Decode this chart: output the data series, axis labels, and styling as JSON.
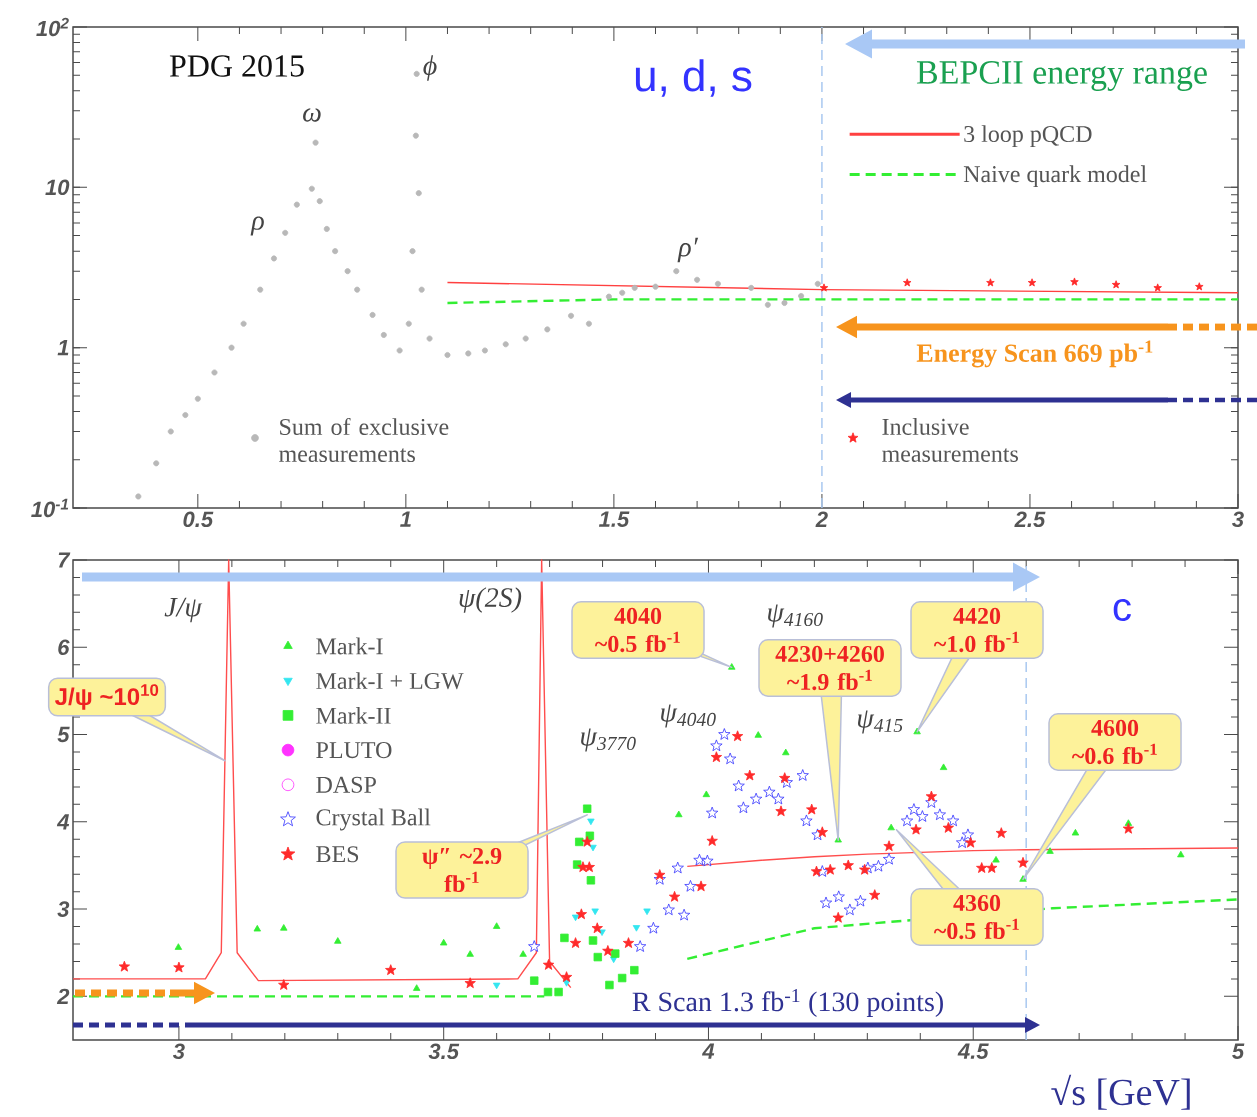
{
  "chart_data": [
    {
      "type": "scatter",
      "log": "y",
      "xlim": [
        0.2,
        3
      ],
      "ylim": [
        0.1,
        100
      ],
      "xticks": [
        0.5,
        1,
        1.5,
        2,
        2.5,
        3
      ],
      "yticks": [
        {
          "value": 0.1,
          "label": "10$^{-1}$"
        },
        1,
        10,
        {
          "value": 100,
          "label": "10$^{2}$"
        }
      ],
      "legend": "bottom",
      "ref_lines": [
        {
          "axis": "x",
          "value": 2,
          "color": "#a9c8f0",
          "line_style": "dashed"
        }
      ],
      "annotations": [
        "PDG 2015",
        "u, d, s",
        "BEPCII energy range",
        "Energy Scan 669 pb$^{-1}$",
        "ρ",
        "ω",
        "ϕ",
        "ρ′"
      ],
      "series": [
        {
          "name": "3 loop pQCD",
          "type": "line",
          "line_style": "solid",
          "marker": "none",
          "color": "#ff4040",
          "x": [
            1.1,
            2.0,
            3.0
          ],
          "values": [
            2.55,
            2.3,
            2.2
          ]
        },
        {
          "name": "Naive quark model",
          "type": "line",
          "line_style": "dashed",
          "marker": "none",
          "color": "#33ee33",
          "x": [
            1.1,
            1.5,
            3.0
          ],
          "values": [
            1.9,
            2.0,
            2.0
          ]
        },
        {
          "name": "Sum of exclusive measurements",
          "marker": "circle",
          "color": "#b8b8b8",
          "x": [
            0.357,
            0.4,
            0.435,
            0.47,
            0.5,
            0.54,
            0.581,
            0.61,
            0.65,
            0.683,
            0.71,
            0.738,
            0.774,
            0.783,
            0.793,
            0.81,
            0.83,
            0.86,
            0.883,
            0.92,
            0.947,
            0.985,
            1.007,
            1.016,
            1.024,
            1.026,
            1.031,
            1.038,
            1.057,
            1.1,
            1.15,
            1.19,
            1.24,
            1.288,
            1.34,
            1.397,
            1.44,
            1.488,
            1.52,
            1.55,
            1.6,
            1.65,
            1.7,
            1.75,
            1.83,
            1.87,
            1.91,
            1.95,
            1.99
          ],
          "values": [
            0.118,
            0.19,
            0.3,
            0.38,
            0.48,
            0.7,
            1.0,
            1.41,
            2.3,
            3.6,
            5.2,
            7.8,
            9.8,
            19,
            8.2,
            5.5,
            4.0,
            3.0,
            2.3,
            1.6,
            1.2,
            0.96,
            1.41,
            4.0,
            21,
            51,
            9.2,
            2.3,
            1.14,
            0.9,
            0.92,
            0.96,
            1.05,
            1.14,
            1.3,
            1.58,
            1.41,
            2.08,
            2.2,
            2.36,
            2.4,
            3.0,
            2.65,
            2.5,
            2.36,
            1.85,
            1.9,
            2.1,
            2.5
          ]
        },
        {
          "name": "Inclusive measurements",
          "marker": "star",
          "color": "#ff2a2a",
          "x": [
            2.005,
            2.205,
            2.405,
            2.505,
            2.607,
            2.707,
            2.807,
            2.907
          ],
          "values": [
            2.36,
            2.54,
            2.54,
            2.54,
            2.57,
            2.47,
            2.36,
            2.4
          ]
        }
      ]
    },
    {
      "type": "scatter",
      "xlim": [
        2.8,
        5
      ],
      "ylim": [
        1.5,
        7
      ],
      "xticks": [
        3,
        3.5,
        4,
        4.5,
        5
      ],
      "yticks": [
        2,
        3,
        4,
        5,
        6,
        7
      ],
      "xlabel": "√s [GeV]",
      "legend": "top left",
      "ref_lines": [
        {
          "axis": "x",
          "value": 4.6,
          "color": "#a9c8f0",
          "line_style": "dashed"
        }
      ],
      "annotations": [
        "J/ψ",
        "ψ(2S)",
        "ψ$_{3770}$",
        "ψ$_{4040}$",
        "ψ$_{4160}$",
        "ψ$_{415}$",
        "c",
        "R Scan 1.3 fb$^{-1}$ (130 points)",
        {
          "text": "J/ψ ~10$^{10}$",
          "x": 3.087,
          "y": 4.7
        },
        {
          "text": "ψ″ ~2.9 fb$^{-1}$",
          "x": 3.771,
          "y": 4.08
        },
        {
          "text": "4040 ~0.5 fb$^{-1}$",
          "x": 4.044,
          "y": 5.77
        },
        {
          "text": "4230+4260 ~1.9 fb$^{-1}$",
          "x": 4.245,
          "y": 3.79
        },
        "4420 ~1.0 fb$^{-1}$",
        "4360 ~0.5 fb$^{-1}$",
        "4600 ~0.6 fb$^{-1}$"
      ],
      "series": [
        {
          "type": "line",
          "line_style": "solid",
          "marker": "none",
          "color": "#ff4d4d",
          "x": [
            2.8,
            3.05,
            3.08,
            3.094,
            3.11,
            3.15,
            3.64,
            3.675,
            3.685,
            3.7,
            3.74
          ],
          "values": [
            2.2,
            2.2,
            2.5,
            7,
            2.5,
            2.18,
            2.2,
            2.5,
            7,
            2.4,
            2.1
          ]
        },
        {
          "type": "line",
          "line_style": "solid",
          "marker": "none",
          "color": "#ff4d4d",
          "x": [
            3.96,
            4.1,
            4.2,
            4.3,
            4.5,
            4.6,
            5.0
          ],
          "values": [
            3.49,
            3.56,
            3.6,
            3.63,
            3.67,
            3.68,
            3.7
          ]
        },
        {
          "type": "line",
          "line_style": "dashed",
          "marker": "none",
          "color": "#33ee33",
          "x": [
            2.8,
            3.69
          ],
          "values": [
            2.0,
            2.0
          ]
        },
        {
          "type": "line",
          "line_style": "dashed",
          "marker": "none",
          "color": "#33ee33",
          "x": [
            3.96,
            4.2,
            4.65,
            5.0
          ],
          "values": [
            2.43,
            2.78,
            3.01,
            3.11
          ]
        },
        {
          "name": "Mark-I",
          "marker": "triangle",
          "color": "#33ee33",
          "x": [
            2.999,
            3.148,
            3.198,
            3.3,
            3.4,
            3.449,
            3.5,
            3.55,
            3.6,
            3.65,
            3.944,
            3.996,
            4.044,
            4.094,
            4.146,
            4.245,
            4.345,
            4.394,
            4.444,
            4.543,
            4.594,
            4.645,
            4.693,
            4.793,
            4.892
          ],
          "values": [
            2.56,
            2.77,
            2.78,
            2.63,
            null,
            2.09,
            2.61,
            2.48,
            2.8,
            2.48,
            4.08,
            4.31,
            5.77,
            4.99,
            4.79,
            3.79,
            3.93,
            5.03,
            4.62,
            3.56,
            3.34,
            3.66,
            3.87,
            3.98,
            3.62
          ]
        },
        {
          "name": "Mark-I + LGW",
          "marker": "triangle-down",
          "color": "#33e6f0",
          "x": [
            3.6,
            3.732,
            3.749,
            3.778,
            3.782,
            3.786,
            3.799,
            3.821,
            3.864,
            3.884
          ],
          "values": [
            2.13,
            2.16,
            2.91,
            4.01,
            3.71,
            2.98,
            2.74,
            2.43,
            2.79,
            2.98
          ]
        },
        {
          "name": "Mark-II",
          "marker": "square",
          "color": "#33ee33",
          "x": [
            3.671,
            3.697,
            3.717,
            3.728,
            3.752,
            3.756,
            3.771,
            3.776,
            3.778,
            3.782,
            3.791,
            3.813,
            3.824,
            3.837,
            3.86
          ],
          "values": [
            2.18,
            2.05,
            2.05,
            2.67,
            3.51,
            3.77,
            4.15,
            3.84,
            3.33,
            2.64,
            2.45,
            2.13,
            2.49,
            2.21,
            2.3
          ]
        },
        {
          "name": "PLUTO",
          "marker": "circle",
          "color": "#ff33ff"
        },
        {
          "name": "DASP",
          "marker": "circle-open",
          "color": "#ff33ff"
        },
        {
          "name": "Crystal Ball",
          "marker": "star-open",
          "color": "#3333ff",
          "x": [
            3.671,
            3.871,
            3.896,
            3.908,
            3.925,
            3.942,
            3.954,
            3.966,
            3.983,
            3.998,
            4.007,
            4.015,
            4.03,
            4.041,
            4.057,
            4.066,
            4.09,
            4.115,
            4.132,
            4.148,
            4.178,
            4.185,
            4.206,
            4.215,
            4.222,
            4.246,
            4.267,
            4.287,
            4.301,
            4.321,
            4.341,
            4.364,
            4.375,
            4.388,
            4.404,
            4.421,
            4.437,
            4.462,
            4.479,
            4.49
          ],
          "values": [
            2.57,
            2.57,
            2.78,
            3.34,
            2.99,
            3.47,
            2.93,
            3.26,
            3.56,
            3.55,
            4.1,
            4.87,
            5.0,
            4.72,
            4.41,
            4.16,
            4.26,
            4.34,
            4.26,
            4.45,
            4.53,
            4.01,
            3.85,
            3.43,
            3.07,
            3.14,
            2.99,
            3.09,
            3.47,
            3.49,
            3.57,
            null,
            4.01,
            4.14,
            4.06,
            4.22,
            4.08,
            4.01,
            3.76,
            3.85
          ]
        },
        {
          "name": "BES",
          "marker": "star",
          "color": "#ff2a2a",
          "x": [
            2.897,
            3.0,
            3.198,
            3.4,
            3.55,
            3.698,
            3.732,
            3.749,
            3.76,
            3.763,
            3.771,
            3.775,
            3.79,
            3.81,
            3.849,
            3.908,
            3.936,
            3.986,
            4.007,
            4.015,
            4.055,
            4.078,
            4.137,
            4.144,
            4.195,
            4.204,
            4.215,
            4.23,
            4.245,
            4.264,
            4.295,
            4.314,
            4.341,
            4.392,
            4.421,
            4.453,
            4.495,
            4.516,
            4.535,
            4.553,
            4.594,
            4.793
          ],
          "values": [
            2.34,
            2.33,
            2.13,
            2.3,
            2.15,
            2.36,
            2.22,
            2.61,
            2.94,
            3.48,
            3.77,
            3.48,
            2.78,
            2.52,
            2.61,
            3.39,
            3.14,
            3.26,
            3.78,
            4.74,
            4.98,
            4.53,
            4.12,
            4.5,
            4.14,
            3.43,
            3.88,
            3.45,
            2.9,
            3.5,
            3.45,
            3.16,
            3.72,
            3.91,
            4.29,
            3.93,
            3.76,
            3.47,
            3.47,
            3.87,
            3.53,
            3.92
          ]
        }
      ]
    }
  ]
}
